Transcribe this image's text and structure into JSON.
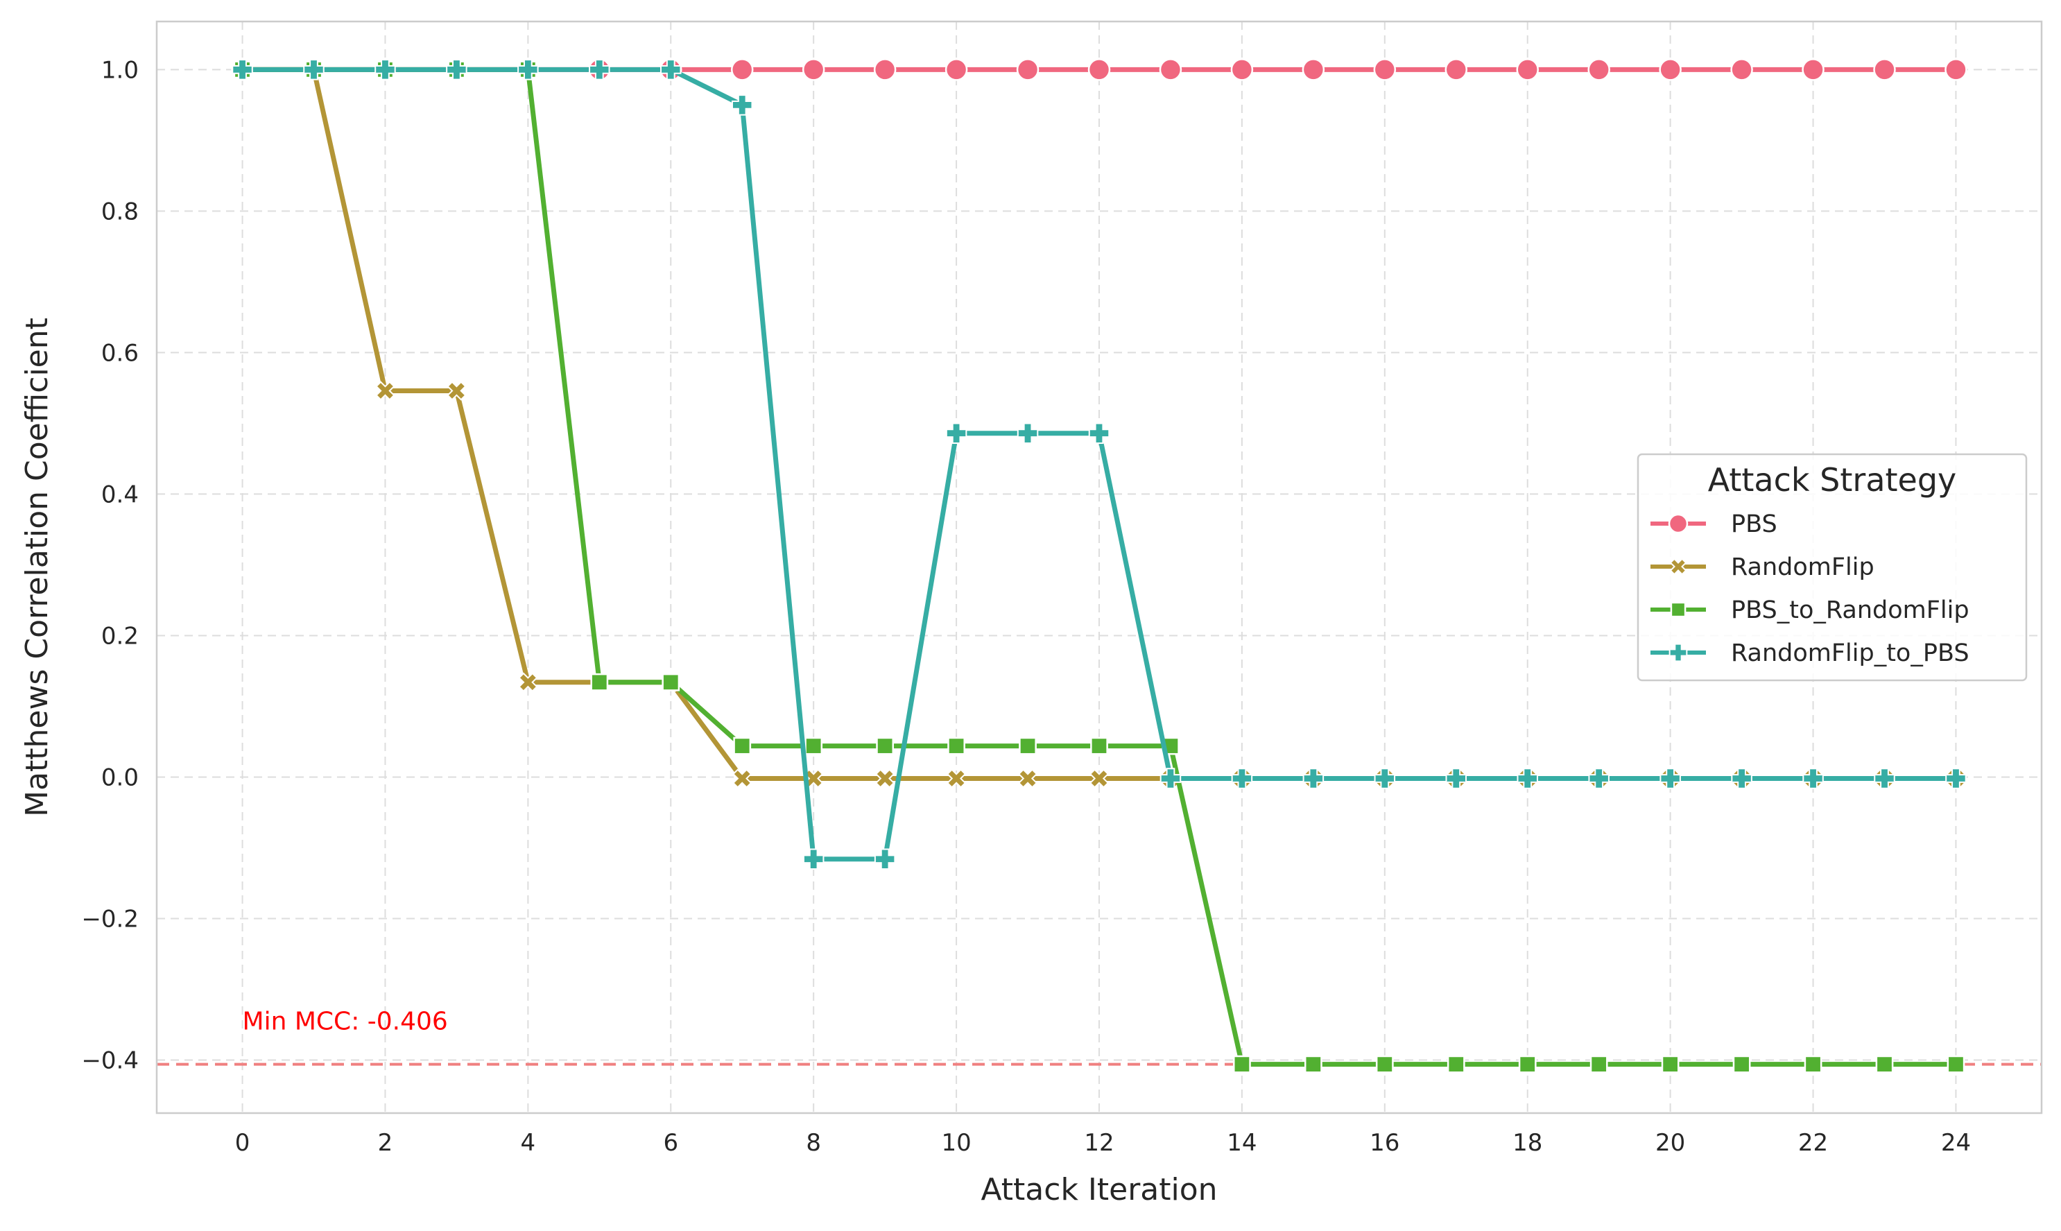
{
  "chart_data": {
    "type": "line",
    "title": "",
    "xlabel": "Attack Iteration",
    "ylabel": "Matthews Correlation Coefficient",
    "xlim": [
      -1.2,
      25.2
    ],
    "ylim": [
      -0.475,
      1.068
    ],
    "x_ticks": [
      0,
      2,
      4,
      6,
      8,
      10,
      12,
      14,
      16,
      18,
      20,
      22,
      24
    ],
    "y_ticks": [
      -0.4,
      -0.2,
      0.0,
      0.2,
      0.4,
      0.6,
      0.8,
      1.0
    ],
    "y_tick_labels": [
      "−0.4",
      "−0.2",
      "0.0",
      "0.2",
      "0.4",
      "0.6",
      "0.8",
      "1.0"
    ],
    "grid": true,
    "grid_style": "dashed",
    "legend": {
      "title": "Attack Strategy",
      "position": "center-right"
    },
    "x": [
      0,
      1,
      2,
      3,
      4,
      5,
      6,
      7,
      8,
      9,
      10,
      11,
      12,
      13,
      14,
      15,
      16,
      17,
      18,
      19,
      20,
      21,
      22,
      23,
      24
    ],
    "series": [
      {
        "name": "PBS",
        "color": "#f0677f",
        "marker": "circle",
        "values": [
          1.0,
          1.0,
          1.0,
          1.0,
          1.0,
          1.0,
          1.0,
          1.0,
          1.0,
          1.0,
          1.0,
          1.0,
          1.0,
          1.0,
          1.0,
          1.0,
          1.0,
          1.0,
          1.0,
          1.0,
          1.0,
          1.0,
          1.0,
          1.0,
          1.0
        ]
      },
      {
        "name": "RandomFlip",
        "color": "#b39536",
        "marker": "x",
        "values": [
          1.0,
          1.0,
          0.546,
          0.546,
          0.134,
          0.134,
          0.134,
          -0.002,
          -0.002,
          -0.002,
          -0.002,
          -0.002,
          -0.002,
          -0.002,
          -0.002,
          -0.002,
          -0.002,
          -0.002,
          -0.002,
          -0.002,
          -0.002,
          -0.002,
          -0.002,
          -0.002,
          -0.002
        ]
      },
      {
        "name": "PBS_to_RandomFlip",
        "color": "#52b031",
        "marker": "square",
        "values": [
          1.0,
          1.0,
          1.0,
          1.0,
          1.0,
          0.134,
          0.134,
          0.044,
          0.044,
          0.044,
          0.044,
          0.044,
          0.044,
          0.044,
          -0.406,
          -0.406,
          -0.406,
          -0.406,
          -0.406,
          -0.406,
          -0.406,
          -0.406,
          -0.406,
          -0.406,
          -0.406
        ]
      },
      {
        "name": "RandomFlip_to_PBS",
        "color": "#36ada4",
        "marker": "plus",
        "values": [
          1.0,
          1.0,
          1.0,
          1.0,
          1.0,
          1.0,
          1.0,
          0.95,
          -0.116,
          -0.116,
          0.486,
          0.486,
          0.486,
          -0.002,
          -0.002,
          -0.002,
          -0.002,
          -0.002,
          -0.002,
          -0.002,
          -0.002,
          -0.002,
          -0.002,
          -0.002,
          -0.002
        ]
      }
    ],
    "reference_line": {
      "y": -0.406,
      "color": "#f08080",
      "style": "dashed",
      "label": "Min MCC: -0.406",
      "label_color": "#ff0000"
    }
  }
}
